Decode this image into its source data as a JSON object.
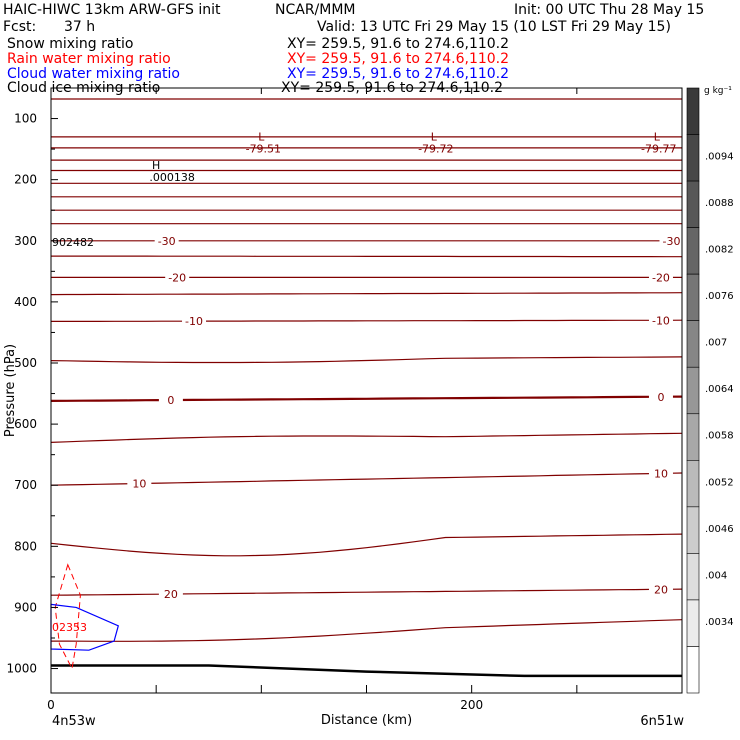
{
  "header": {
    "title_left": "HAIC-HIWC 13km ARW-GFS init",
    "org": "NCAR/MMM",
    "init": "Init: 00 UTC Thu 28 May 15",
    "fcst_label": "Fcst:",
    "fcst_value": "37 h",
    "valid": "Valid: 13 UTC Fri 29 May 15 (10 LST Fri 29 May 15)"
  },
  "fields": [
    {
      "name": "Snow mixing ratio",
      "xy": "XY= 259.5, 91.6 to 274.6,110.2",
      "color": "#000000"
    },
    {
      "name": "Rain water mixing ratio",
      "xy": "XY= 259.5, 91.6 to 274.6,110.2",
      "color": "#ff0000"
    },
    {
      "name": "Cloud water mixing ratio",
      "xy": "XY= 259.5, 91.6 to 274.6,110.2",
      "color": "#0000ff"
    },
    {
      "name": "Cloud ice mixing ratio",
      "xy": "XY= 259.5, 91.6 to 274.6,110.2",
      "color": "#000000"
    }
  ],
  "colorbar": {
    "unit": "g kg⁻¹",
    "labels": [
      ".0094",
      ".0088",
      ".0082",
      ".0076",
      ".007",
      ".0064",
      ".0058",
      ".0052",
      ".0046",
      ".004",
      ".0034"
    ],
    "shades": [
      "#3a3a3a",
      "#484848",
      "#575757",
      "#666666",
      "#767676",
      "#868686",
      "#979797",
      "#a8a8a8",
      "#bababa",
      "#cccccc",
      "#dddddd",
      "#ececec",
      "#ffffff"
    ]
  },
  "chart_data": {
    "type": "contour",
    "xlabel": "Distance (km)",
    "ylabel": "Pressure (hPa)",
    "xlim": [
      0,
      300
    ],
    "ylim": [
      1040,
      50
    ],
    "xticks": [
      0,
      200
    ],
    "yticks": [
      100,
      200,
      300,
      400,
      500,
      600,
      700,
      800,
      900,
      1000
    ],
    "x_end_labels": [
      "4n53w",
      "6n51w"
    ],
    "grid": false,
    "lows": [
      {
        "x": 100,
        "p": 90,
        "label": "L",
        "value": "-79.51"
      },
      {
        "x": 182,
        "p": 90,
        "label": "L",
        "value": "-79.72"
      },
      {
        "x": 288,
        "p": 90,
        "label": "L",
        "value": "-79.77"
      }
    ],
    "high": {
      "x": 50,
      "p": 245,
      "label": "H",
      "value": ".000138"
    },
    "annotations": [
      {
        "text": "902482",
        "x": 0,
        "p": 300,
        "color": "#000000"
      },
      {
        "text": "02353",
        "x": 0,
        "p": 930,
        "color": "#ff0000"
      }
    ],
    "temperature_contours": [
      {
        "label": "-30",
        "p_start": 300,
        "p_end": 300,
        "label_xs": [
          55,
          295
        ]
      },
      {
        "label": "-20",
        "p_start": 360,
        "p_end": 360,
        "label_xs": [
          60,
          290
        ]
      },
      {
        "label": "-10",
        "p_start": 432,
        "p_end": 430,
        "label_xs": [
          68,
          290
        ]
      },
      {
        "label": "0",
        "p_start": 562,
        "p_end": 555,
        "label_xs": [
          57,
          290
        ]
      },
      {
        "label": "10",
        "p_start": 700,
        "p_end": 680,
        "label_xs": [
          42,
          290
        ]
      },
      {
        "label": "20",
        "p_start": 880,
        "p_end": 870,
        "label_xs": [
          57,
          290
        ]
      }
    ],
    "other_contours": [
      {
        "p_start": 68,
        "p_end": 68,
        "dip": 0
      },
      {
        "p_start": 130,
        "p_end": 130,
        "dip": 0
      },
      {
        "p_start": 148,
        "p_end": 148,
        "dip": 0
      },
      {
        "p_start": 168,
        "p_end": 168,
        "dip": 0
      },
      {
        "p_start": 185,
        "p_end": 185,
        "dip": 0
      },
      {
        "p_start": 206,
        "p_end": 206,
        "dip": 0
      },
      {
        "p_start": 228,
        "p_end": 228,
        "dip": 0
      },
      {
        "p_start": 250,
        "p_end": 250,
        "dip": 0
      },
      {
        "p_start": 272,
        "p_end": 272,
        "dip": 0
      },
      {
        "p_start": 325,
        "p_end": 326,
        "dip": 0
      },
      {
        "p_start": 388,
        "p_end": 385,
        "dip": 0
      },
      {
        "p_start": 496,
        "p_end": 490,
        "dip": 5
      },
      {
        "p_start": 630,
        "p_end": 615,
        "dip": -5
      },
      {
        "p_start": 795,
        "p_end": 780,
        "dip": 25
      },
      {
        "p_start": 955,
        "p_end": 920,
        "dip": 8
      }
    ],
    "surface": {
      "label": "terrain",
      "p": [
        995,
        995,
        1005,
        1012,
        1012
      ]
    },
    "rain_outline_pts": [
      [
        8,
        830
      ],
      [
        14,
        880
      ],
      [
        12,
        960
      ],
      [
        10,
        1000
      ],
      [
        4,
        960
      ],
      [
        2,
        900
      ]
    ],
    "cloud_outline_pts": [
      [
        0,
        895
      ],
      [
        12,
        900
      ],
      [
        32,
        930
      ],
      [
        30,
        955
      ],
      [
        18,
        970
      ],
      [
        0,
        968
      ]
    ]
  }
}
